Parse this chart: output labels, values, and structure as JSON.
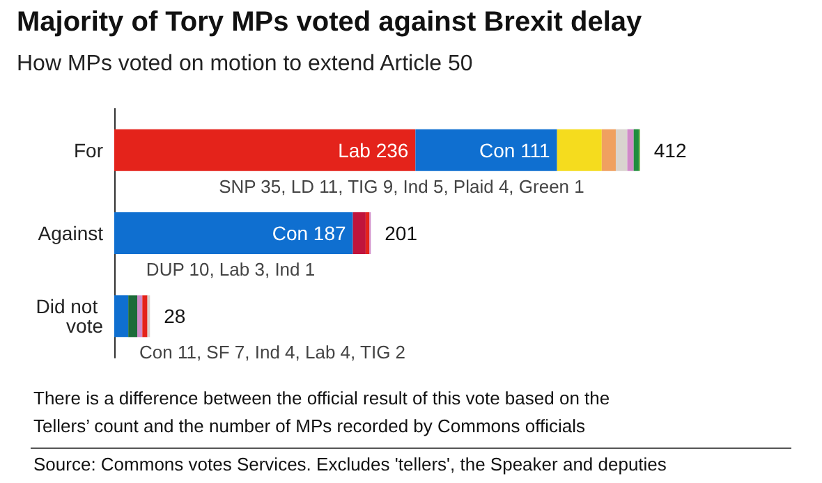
{
  "chart_data": {
    "type": "bar",
    "orientation": "horizontal",
    "stacked": true,
    "title": "Majority of Tory MPs voted against Brexit delay",
    "subtitle": "How MPs voted on motion to extend Article 50",
    "categories": [
      "For",
      "Against",
      "Did not vote"
    ],
    "series": [
      {
        "color": "#e4231b",
        "values": [
          236,
          null,
          null
        ],
        "value_labels": [
          "Lab 236",
          null,
          null
        ]
      },
      {
        "color": "#0f6fd0",
        "values": [
          111,
          187,
          11
        ],
        "value_labels": [
          "Con 111",
          "Con 187",
          null
        ]
      },
      {
        "color": "#f5dc1e",
        "values": [
          35,
          null,
          null
        ]
      },
      {
        "color": "#f0a060",
        "values": [
          11,
          null,
          null
        ]
      },
      {
        "color": "#c0143c",
        "values": [
          null,
          10,
          null
        ]
      },
      {
        "color": "#1d6b3a",
        "values": [
          null,
          null,
          7
        ]
      },
      {
        "color": "#d9d4cf",
        "values": [
          9,
          null,
          null
        ]
      },
      {
        "color": "#d08ac8",
        "values": [
          5,
          null,
          4
        ]
      },
      {
        "color": "#e4231b",
        "values": [
          null,
          3,
          4
        ]
      },
      {
        "color": "#d08ac8",
        "values": [
          null,
          1,
          null
        ]
      },
      {
        "color": "#d9d4cf",
        "values": [
          null,
          null,
          2
        ]
      },
      {
        "color": "#1e8c3e",
        "values": [
          4,
          null,
          null
        ]
      },
      {
        "color": "#6ab04c",
        "values": [
          1,
          null,
          null
        ]
      }
    ],
    "totals": [
      "412",
      "201",
      "28"
    ],
    "annotations": [
      "SNP 35, LD 11, TIG 9, Ind 5, Plaid 4, Green 1",
      "DUP 10, Lab 3, Ind 1",
      "Con 11, SF 7, Ind 4, Lab 4, TIG 2",
      "There is a difference between the official result of this vote based on the Tellers’ count and the number of MPs recorded by Commons officials",
      "Source: Commons votes Services. Excludes 'tellers', the Speaker and deputies"
    ]
  }
}
